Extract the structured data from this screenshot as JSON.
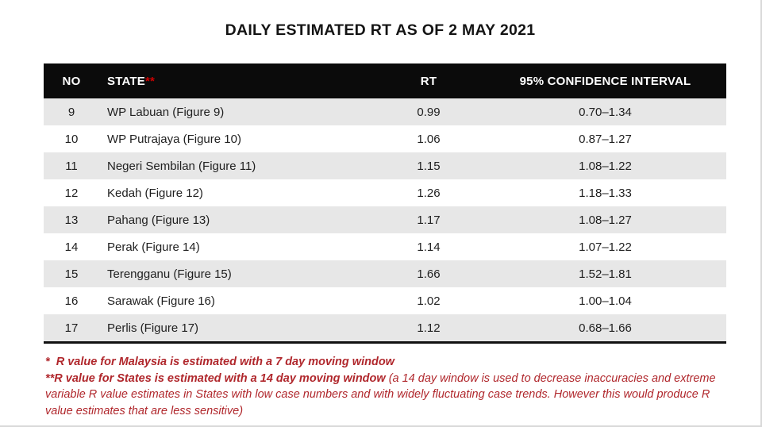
{
  "title": "DAILY ESTIMATED RT AS OF 2 MAY 2021",
  "table": {
    "headers": {
      "no": "NO",
      "state": "STATE",
      "state_asterisks": "**",
      "rt": "RT",
      "ci": "95% CONFIDENCE INTERVAL"
    },
    "rows": [
      {
        "no": "9",
        "state": "WP Labuan (Figure 9)",
        "rt": "0.99",
        "ci": "0.70–1.34"
      },
      {
        "no": "10",
        "state": "WP Putrajaya (Figure 10)",
        "rt": "1.06",
        "ci": "0.87–1.27"
      },
      {
        "no": "11",
        "state": "Negeri Sembilan (Figure 11)",
        "rt": "1.15",
        "ci": "1.08–1.22"
      },
      {
        "no": "12",
        "state": "Kedah (Figure 12)",
        "rt": "1.26",
        "ci": "1.18–1.33"
      },
      {
        "no": "13",
        "state": "Pahang (Figure 13)",
        "rt": "1.17",
        "ci": "1.08–1.27"
      },
      {
        "no": "14",
        "state": "Perak (Figure 14)",
        "rt": "1.14",
        "ci": "1.07–1.22"
      },
      {
        "no": "15",
        "state": "Terengganu (Figure 15)",
        "rt": "1.66",
        "ci": "1.52–1.81"
      },
      {
        "no": "16",
        "state": "Sarawak (Figure 16)",
        "rt": "1.02",
        "ci": "1.00–1.04"
      },
      {
        "no": "17",
        "state": "Perlis (Figure 17)",
        "rt": "1.12",
        "ci": "0.68–1.66"
      }
    ]
  },
  "notes": {
    "line1": "*  R value for Malaysia is estimated with a 7 day moving window",
    "line2_bold": "**R value for States is estimated with a 14 day moving window",
    "line2_rest": " (a 14 day window is used to decrease inaccuracies and extreme variable R value estimates in States with low case numbers and with widely fluctuating case trends. However this would produce R value estimates that are less sensitive)"
  },
  "colors": {
    "header_bg": "#0b0b0b",
    "header_text": "#ffffff",
    "asterisk_red": "#cc0000",
    "stripe_gray": "#e7e7e7",
    "note_red": "#b0272c"
  }
}
